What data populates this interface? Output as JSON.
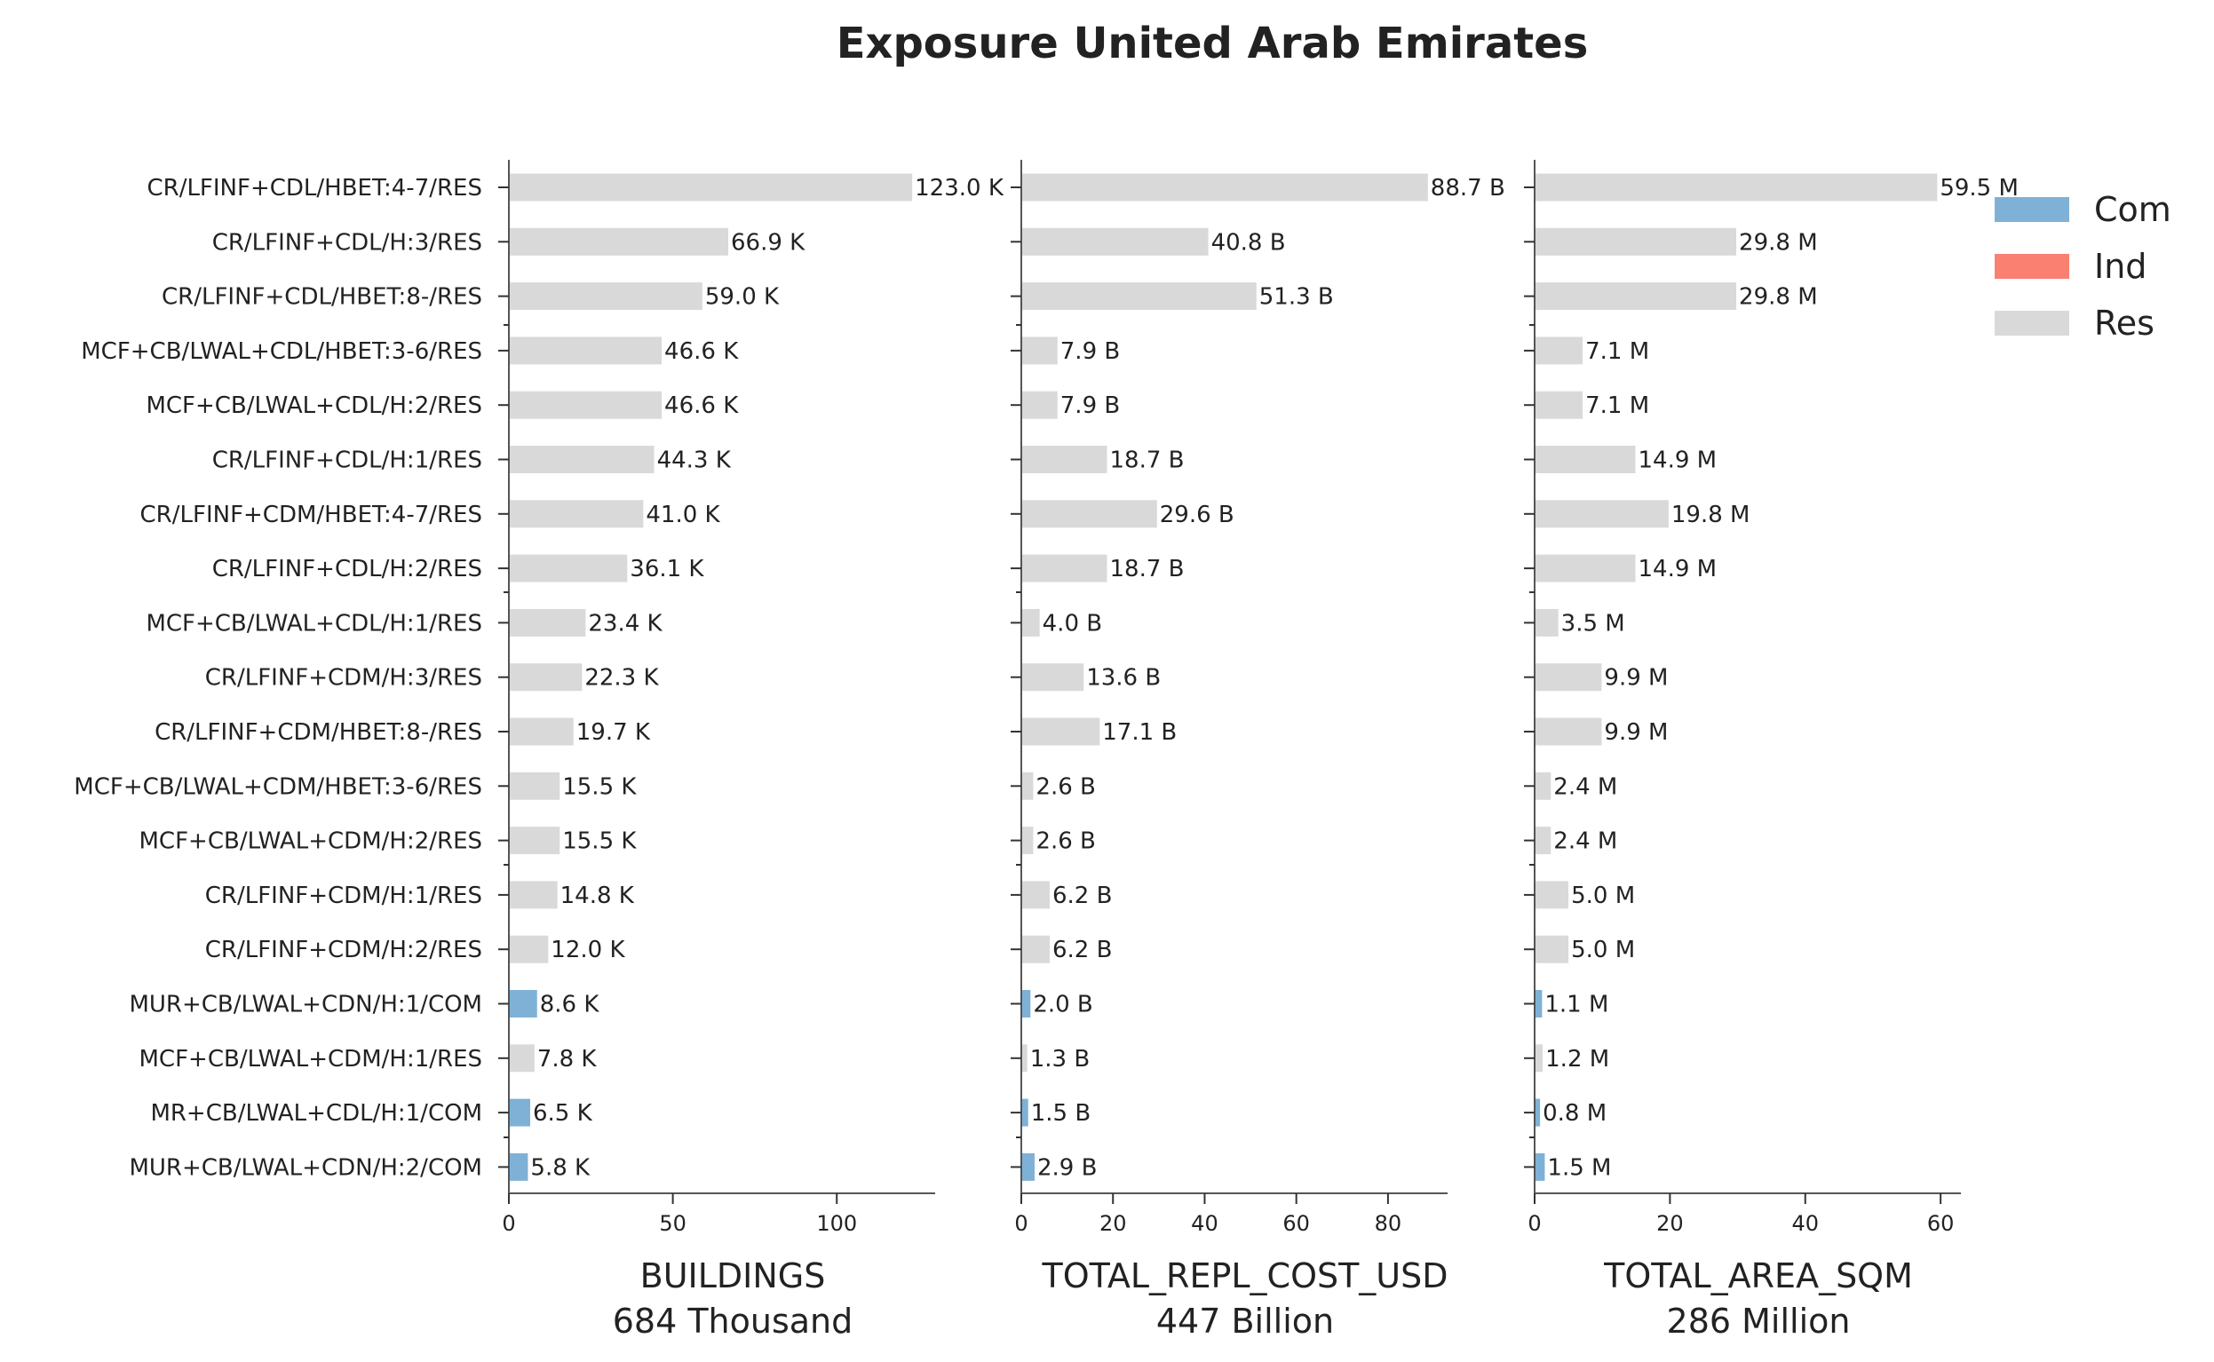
{
  "chart_data": {
    "type": "bar",
    "orientation": "horizontal",
    "title": "Exposure United Arab Emirates",
    "categories": [
      "CR/LFINF+CDL/HBET:4-7/RES",
      "CR/LFINF+CDL/H:3/RES",
      "CR/LFINF+CDL/HBET:8-/RES",
      "MCF+CB/LWAL+CDL/HBET:3-6/RES",
      "MCF+CB/LWAL+CDL/H:2/RES",
      "CR/LFINF+CDL/H:1/RES",
      "CR/LFINF+CDM/HBET:4-7/RES",
      "CR/LFINF+CDL/H:2/RES",
      "MCF+CB/LWAL+CDL/H:1/RES",
      "CR/LFINF+CDM/H:3/RES",
      "CR/LFINF+CDM/HBET:8-/RES",
      "MCF+CB/LWAL+CDM/HBET:3-6/RES",
      "MCF+CB/LWAL+CDM/H:2/RES",
      "CR/LFINF+CDM/H:1/RES",
      "CR/LFINF+CDM/H:2/RES",
      "MUR+CB/LWAL+CDN/H:1/COM",
      "MCF+CB/LWAL+CDM/H:1/RES",
      "MR+CB/LWAL+CDL/H:1/COM",
      "MUR+CB/LWAL+CDN/H:2/COM"
    ],
    "occupancy": [
      "Res",
      "Res",
      "Res",
      "Res",
      "Res",
      "Res",
      "Res",
      "Res",
      "Res",
      "Res",
      "Res",
      "Res",
      "Res",
      "Res",
      "Res",
      "Com",
      "Res",
      "Com",
      "Com"
    ],
    "legend": {
      "placement": "top-right",
      "entries": [
        {
          "name": "Com",
          "color": "#7fb1d6"
        },
        {
          "name": "Ind",
          "color": "#fa8071"
        },
        {
          "name": "Res",
          "color": "#d9d9d9"
        }
      ]
    },
    "panels": [
      {
        "xlabel": "BUILDINGS",
        "total": "684 Thousand",
        "xlim": [
          0,
          130
        ],
        "xticks": [
          0,
          50,
          100
        ],
        "values": [
          123.0,
          66.9,
          59.0,
          46.6,
          46.6,
          44.3,
          41.0,
          36.1,
          23.4,
          22.3,
          19.7,
          15.5,
          15.5,
          14.8,
          12.0,
          8.6,
          7.8,
          6.5,
          5.8
        ],
        "value_labels": [
          "123.0 K",
          "66.9 K",
          "59.0 K",
          "46.6 K",
          "46.6 K",
          "44.3 K",
          "41.0 K",
          "36.1 K",
          "23.4 K",
          "22.3 K",
          "19.7 K",
          "15.5 K",
          "15.5 K",
          "14.8 K",
          "12.0 K",
          "8.6 K",
          "7.8 K",
          "6.5 K",
          "5.8 K"
        ]
      },
      {
        "xlabel": "TOTAL_REPL_COST_USD",
        "total": "447 Billion",
        "xlim": [
          0,
          93
        ],
        "xticks": [
          0,
          20,
          40,
          60,
          80
        ],
        "values": [
          88.7,
          40.8,
          51.3,
          7.9,
          7.9,
          18.7,
          29.6,
          18.7,
          4.0,
          13.6,
          17.1,
          2.6,
          2.6,
          6.2,
          6.2,
          2.0,
          1.3,
          1.5,
          2.9
        ],
        "value_labels": [
          "88.7 B",
          "40.8 B",
          "51.3 B",
          "7.9 B",
          "7.9 B",
          "18.7 B",
          "29.6 B",
          "18.7 B",
          "4.0 B",
          "13.6 B",
          "17.1 B",
          "2.6 B",
          "2.6 B",
          "6.2 B",
          "6.2 B",
          "2.0 B",
          "1.3 B",
          "1.5 B",
          "2.9 B"
        ]
      },
      {
        "xlabel": "TOTAL_AREA_SQM",
        "total": "286 Million",
        "xlim": [
          0,
          63
        ],
        "xticks": [
          0,
          20,
          40,
          60
        ],
        "values": [
          59.5,
          29.8,
          29.8,
          7.1,
          7.1,
          14.9,
          19.8,
          14.9,
          3.5,
          9.9,
          9.9,
          2.4,
          2.4,
          5.0,
          5.0,
          1.1,
          1.2,
          0.8,
          1.5
        ],
        "value_labels": [
          "59.5 M",
          "29.8 M",
          "29.8 M",
          "7.1 M",
          "7.1 M",
          "14.9 M",
          "19.8 M",
          "14.9 M",
          "3.5 M",
          "9.9 M",
          "9.9 M",
          "2.4 M",
          "2.4 M",
          "5.0 M",
          "5.0 M",
          "1.1 M",
          "1.2 M",
          "0.8 M",
          "1.5 M"
        ]
      }
    ],
    "grid": false
  }
}
